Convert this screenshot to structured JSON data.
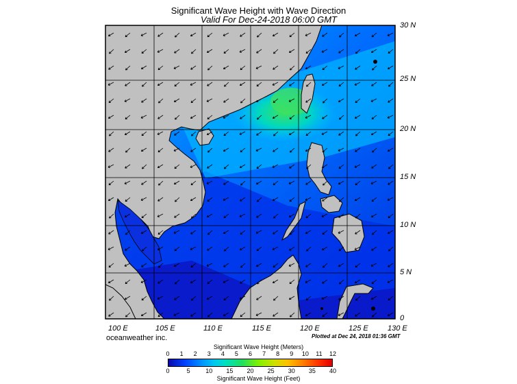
{
  "title": "Significant Wave Height with Wave Direction",
  "subtitle": "Valid For Dec-24-2018 06:00 GMT",
  "lat_labels": [
    "30 N",
    "25 N",
    "20 N",
    "15 N",
    "10 N",
    "5 N",
    "0"
  ],
  "lon_labels": [
    "100 E",
    "105 E",
    "110 E",
    "115 E",
    "120 E",
    "125 E",
    "130 E"
  ],
  "credit": "oceanweather inc.",
  "plotted": "Plotted at Dec 24, 2018 01:36 GMT",
  "colorbar": {
    "meters_title": "Significant Wave Height (Meters)",
    "meters_ticks": [
      "0",
      "1",
      "2",
      "3",
      "4",
      "5",
      "6",
      "7",
      "8",
      "9",
      "10",
      "11",
      "12"
    ],
    "feet_ticks": [
      "0",
      "5",
      "10",
      "15",
      "20",
      "25",
      "30",
      "35",
      "40"
    ],
    "feet_title": "Significant Wave Height (Feet)"
  },
  "colors": {
    "land": "#c0c0c0",
    "deep_blue": "#0a1ed0",
    "blue": "#0050ff",
    "cyan": "#00c0ff",
    "green": "#30e050"
  }
}
